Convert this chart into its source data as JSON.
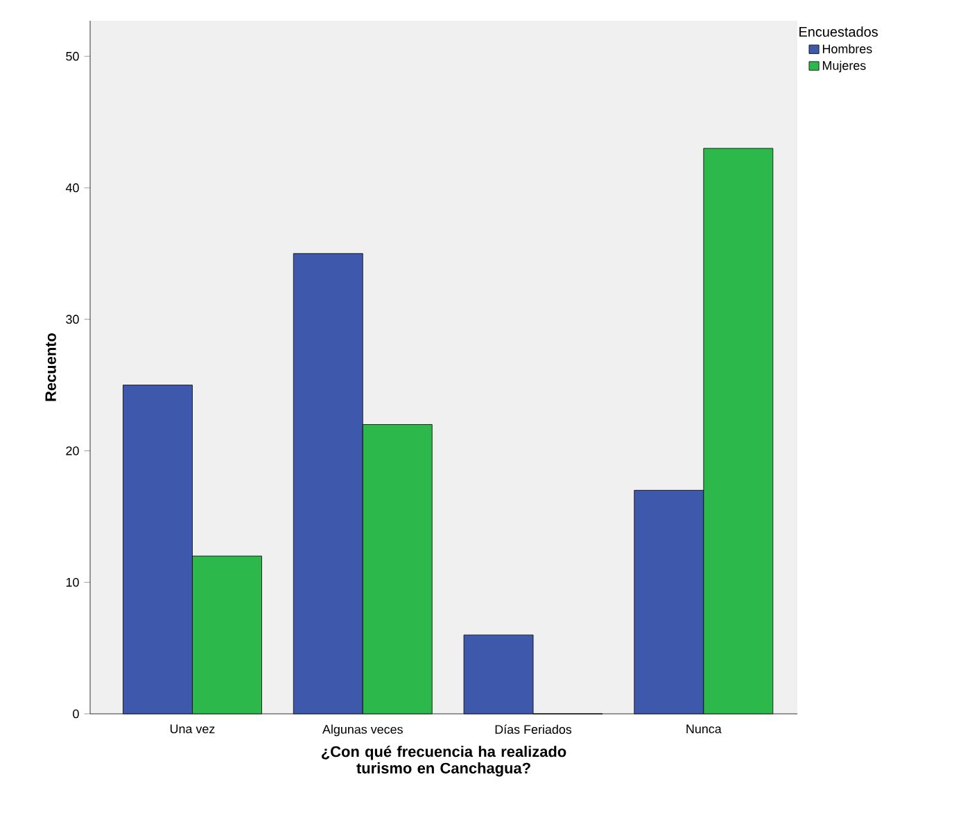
{
  "chart_data": {
    "type": "bar",
    "categories": [
      "Una vez",
      "Algunas veces",
      "Días Feriados",
      "Nunca"
    ],
    "series": [
      {
        "name": "Hombres",
        "color": "#3e58ac",
        "values": [
          25,
          35,
          6,
          17
        ]
      },
      {
        "name": "Mujeres",
        "color": "#2db84b",
        "values": [
          12,
          22,
          0,
          43
        ]
      }
    ],
    "xlabel": "¿Con qué frecuencia ha realizado turismo en Canchagua?",
    "ylabel": "Recuento",
    "legend_title": "Encuestados",
    "legend": "top right",
    "ylim": [
      0,
      52.7
    ],
    "yticks": [
      0,
      10,
      20,
      30,
      40,
      50
    ],
    "grid": false
  }
}
